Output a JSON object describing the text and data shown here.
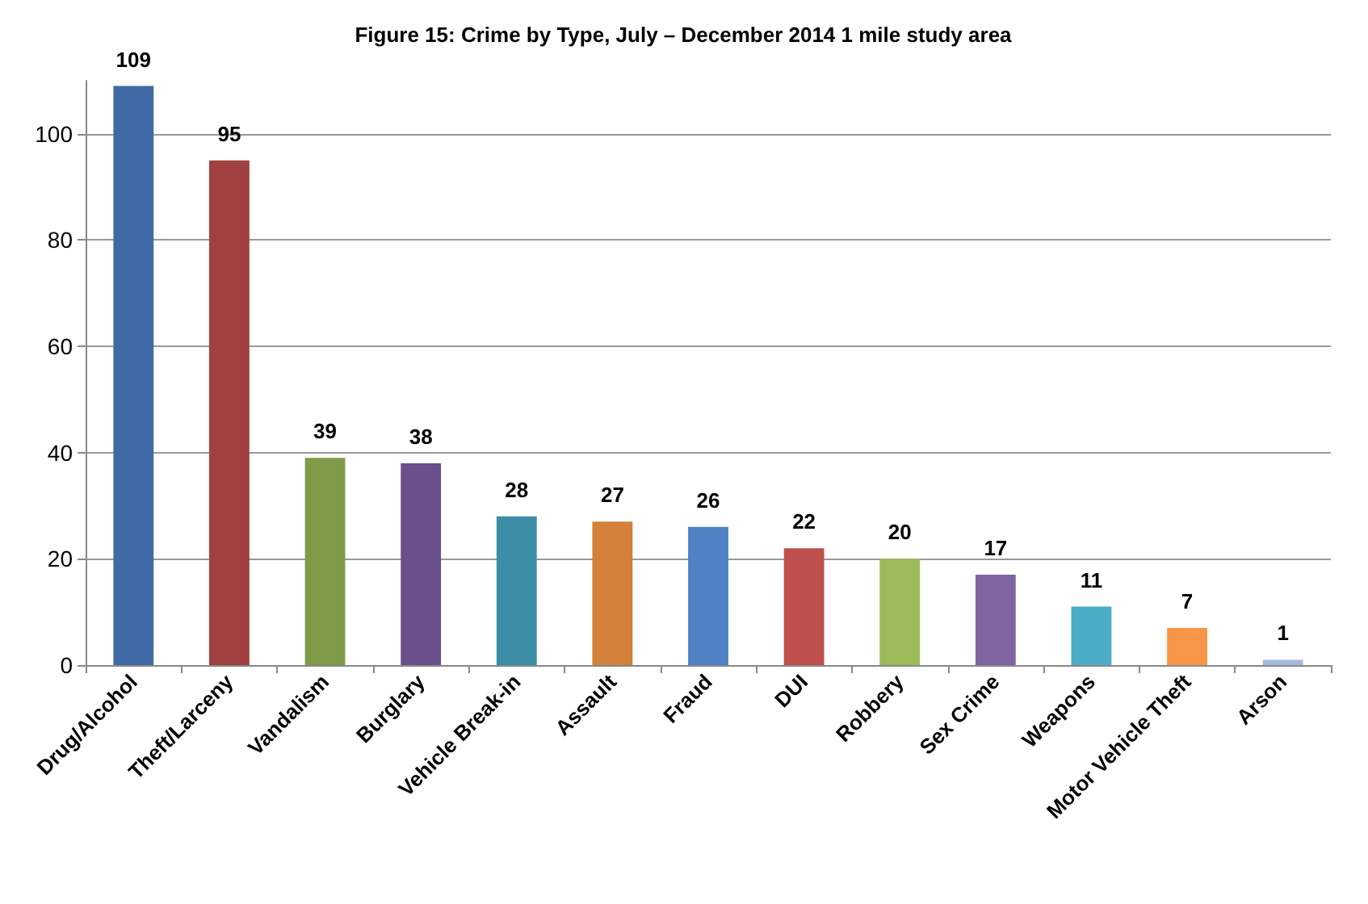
{
  "chart_data": {
    "type": "bar",
    "title": "Figure 15: Crime by Type, July – December 2014 1 mile study area",
    "categories": [
      "Drug/Alcohol",
      "Theft/Larceny",
      "Vandalism",
      "Burglary",
      "Vehicle Break-in",
      "Assault",
      "Fraud",
      "DUI",
      "Robbery",
      "Sex Crime",
      "Weapons",
      "Motor Vehicle Theft",
      "Arson"
    ],
    "values": [
      109,
      95,
      39,
      38,
      28,
      27,
      26,
      22,
      20,
      17,
      11,
      7,
      1
    ],
    "colors": [
      "#3f6aa5",
      "#a04040",
      "#7f9a48",
      "#6a4f8a",
      "#3b8ea5",
      "#d2803a",
      "#4f81c4",
      "#c0504d",
      "#9bbb59",
      "#8064a2",
      "#4bacc6",
      "#f79646",
      "#a7b9e0"
    ],
    "ylim": [
      0,
      110
    ],
    "yticks": [
      0,
      20,
      40,
      60,
      80,
      100
    ],
    "grid": "y",
    "data_labels": true
  }
}
